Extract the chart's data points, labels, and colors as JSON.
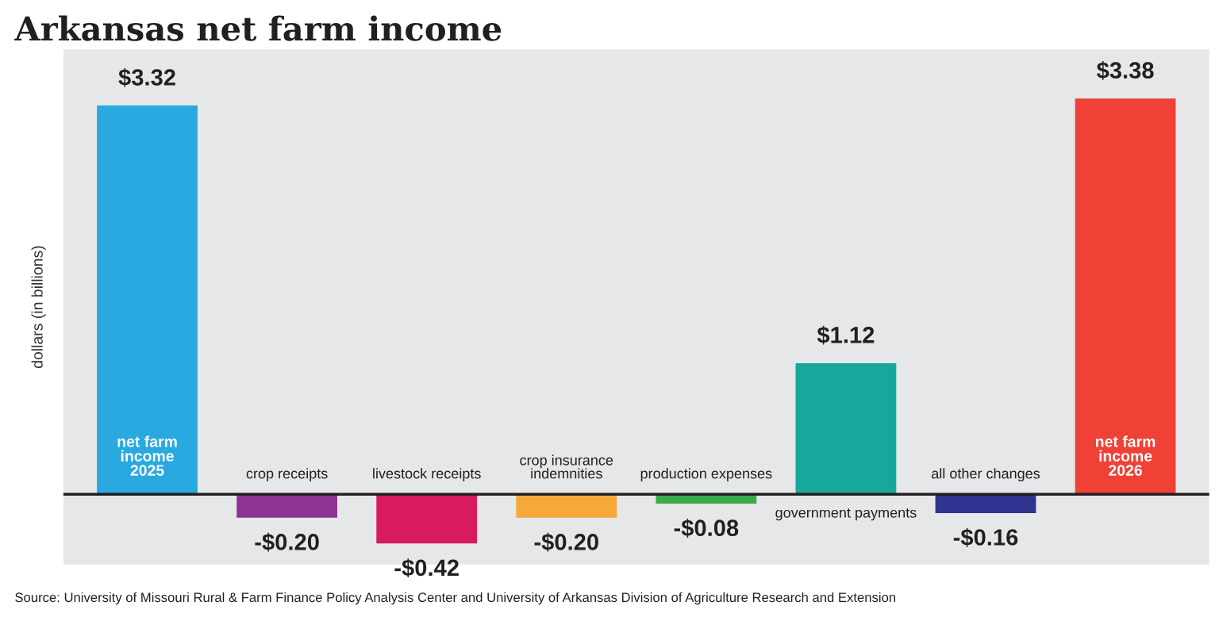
{
  "chart_data": {
    "type": "bar",
    "title": "Arkansas net farm income",
    "ylabel": "dollars (in billions)",
    "categories": [
      "net farm\nincome\n2025",
      "crop receipts",
      "livestock receipts",
      "crop insurance\nindemnities",
      "production expenses",
      "government payments",
      "all other changes",
      "net farm\nincome\n2026"
    ],
    "values": [
      3.32,
      -0.2,
      -0.42,
      -0.2,
      -0.08,
      1.12,
      -0.16,
      3.38
    ],
    "colors": [
      "#29a9e0",
      "#8e3393",
      "#d81b5e",
      "#f5a93b",
      "#3aaa4a",
      "#15a89b",
      "#2e3490",
      "#ef4136"
    ],
    "value_labels": [
      "$3.32",
      "-$0.20",
      "-$0.42",
      "-$0.20",
      "-$0.08",
      "$1.12",
      "-$0.16",
      "$3.38"
    ],
    "ylim": [
      -0.6,
      3.8
    ],
    "tick_labels": false,
    "annotations": [
      "Source: University of Missouri Rural & Farm Finance Policy Analysis Center and University of Arkansas Division of Agriculture Research and Extension"
    ]
  }
}
